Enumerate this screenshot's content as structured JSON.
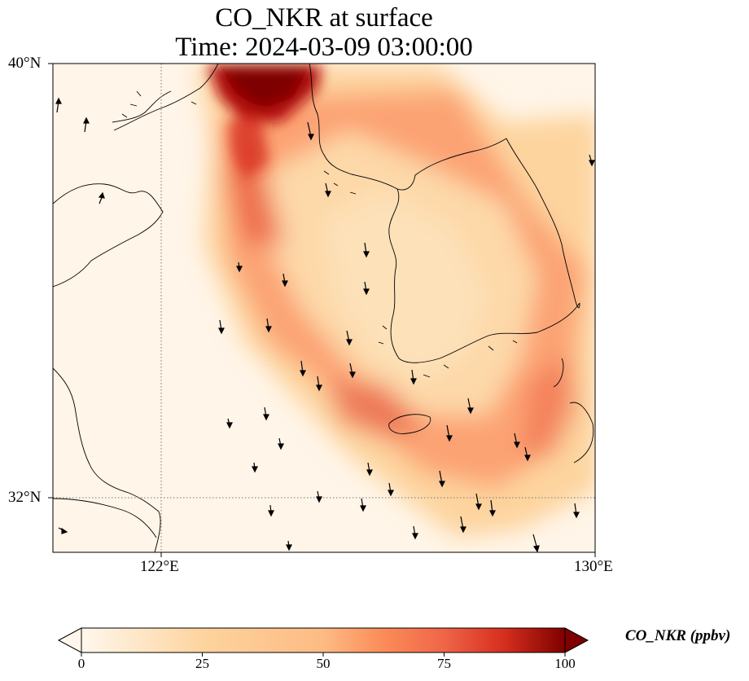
{
  "title": {
    "line1": "CO_NKR at surface",
    "line2": "Time: 2024-03-09 03:00:00"
  },
  "map": {
    "variable": "CO_NKR",
    "level": "surface",
    "extent": {
      "lon_min": 120,
      "lon_max": 130,
      "lat_min": 31,
      "lat_max": 40
    },
    "lat_ticks": [
      {
        "value": 40,
        "label": "40°N"
      },
      {
        "value": 32,
        "label": "32°N"
      }
    ],
    "lon_ticks": [
      {
        "value": 122,
        "label": "122°E"
      },
      {
        "value": 130,
        "label": "130°E"
      }
    ],
    "gridlines": {
      "lon": [
        122
      ],
      "lat": [
        32
      ],
      "style": "dotted"
    },
    "overlays": [
      "coastlines",
      "wind-vectors"
    ]
  },
  "colorbar": {
    "label": "CO_NKR (ppbv)",
    "colormap": "OrRd",
    "min": 0,
    "max": 100,
    "extend": "both",
    "ticks": [
      "0",
      "25",
      "50",
      "75",
      "100"
    ],
    "colors": [
      "#fff7ec",
      "#fdd49e",
      "#fc8d59",
      "#d7301f",
      "#7f0000"
    ]
  }
}
